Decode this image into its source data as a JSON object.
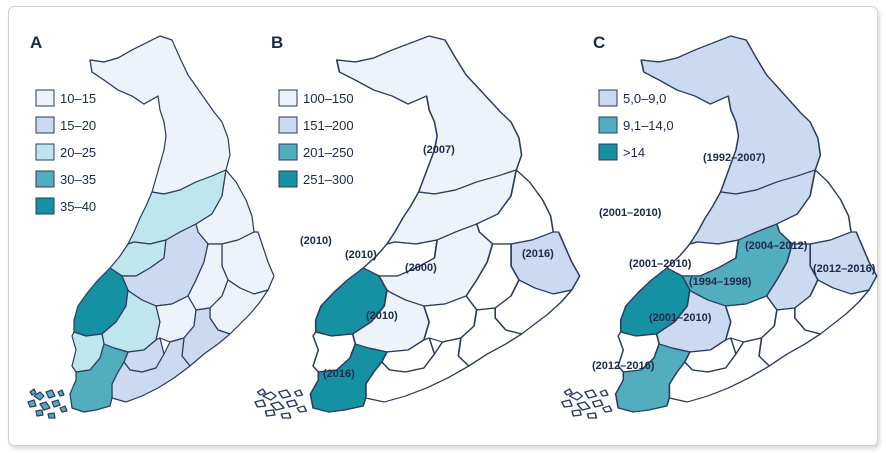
{
  "colors": {
    "c1": "#eef3fb",
    "c2": "#cbd9f1",
    "c3": "#bfe6ee",
    "c4": "#52aebf",
    "c5": "#1591a3",
    "white": "#ffffff",
    "outline": "#2a3b5c"
  },
  "panels": [
    {
      "letter": "A",
      "legend": [
        "10–15",
        "15–20",
        "20–25",
        "30–35",
        "35–40"
      ]
    },
    {
      "letter": "B",
      "legend": [
        "100–150",
        "151–200",
        "201–250",
        "251–300"
      ],
      "labels": [
        "(2007)",
        "(2010)",
        "(2010)",
        "(2000)",
        "(2016)",
        "(2010)",
        "(2016)"
      ]
    },
    {
      "letter": "C",
      "legend": [
        "5,0–9,0",
        "9,1–14,0",
        ">14"
      ],
      "labels": [
        "(1992–2007)",
        "(2001–2010)",
        "(2001–2010)",
        "(1994–1998)",
        "(2004–2012)",
        "(2012–2016)",
        "(2001–2010)",
        "(2012–2016)"
      ]
    }
  ]
}
